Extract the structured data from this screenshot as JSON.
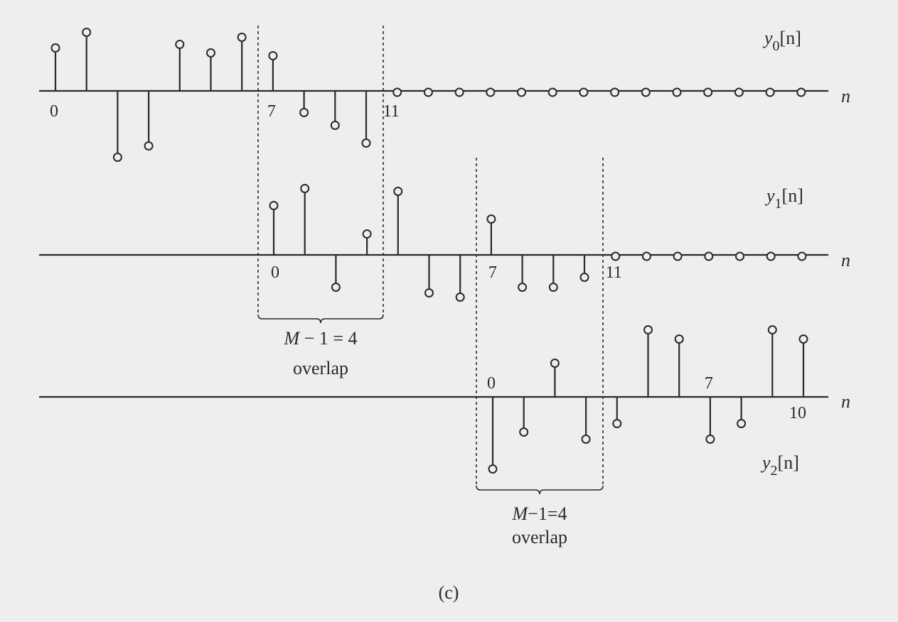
{
  "caption": "(c)",
  "axis_var": "n",
  "signals": [
    {
      "id": "y0",
      "label_main": "y",
      "label_sub": "0",
      "label_arg": "[n]",
      "start": 0,
      "values": [
        55,
        77,
        -88,
        -72,
        60,
        48,
        70,
        44,
        -25,
        -43,
        -68
      ],
      "zero_count": 14,
      "ticks": [
        {
          "sample": 0,
          "text": "0"
        },
        {
          "sample": 7,
          "text": "7"
        },
        {
          "sample": 11,
          "text": "11"
        }
      ]
    },
    {
      "id": "y1",
      "label_main": "y",
      "label_sub": "1",
      "label_arg": "[n]",
      "start": 0,
      "values": [
        64,
        88,
        -40,
        24,
        84,
        -48,
        -54,
        45,
        -40,
        -40,
        -26
      ],
      "zero_count": 7,
      "ticks": [
        {
          "sample": 0,
          "text": "0"
        },
        {
          "sample": 7,
          "text": "7"
        },
        {
          "sample": 11,
          "text": "11"
        }
      ]
    },
    {
      "id": "y2",
      "label_main": "y",
      "label_sub": "2",
      "label_arg": "[n]",
      "start": 0,
      "values": [
        -96,
        -44,
        42,
        -54,
        -32,
        89,
        76,
        -54,
        -32,
        89,
        76
      ],
      "zero_count": 0,
      "ticks": [
        {
          "sample": 0,
          "text": "0"
        },
        {
          "sample": 7,
          "text": "7"
        },
        {
          "sample": 10,
          "text": "10"
        }
      ]
    }
  ],
  "overlaps": [
    {
      "id": "overlap-1",
      "line1": "M − 1 =  4",
      "line2": "overlap"
    },
    {
      "id": "overlap-2",
      "line1": "M−1=4",
      "line2": "overlap"
    }
  ]
}
